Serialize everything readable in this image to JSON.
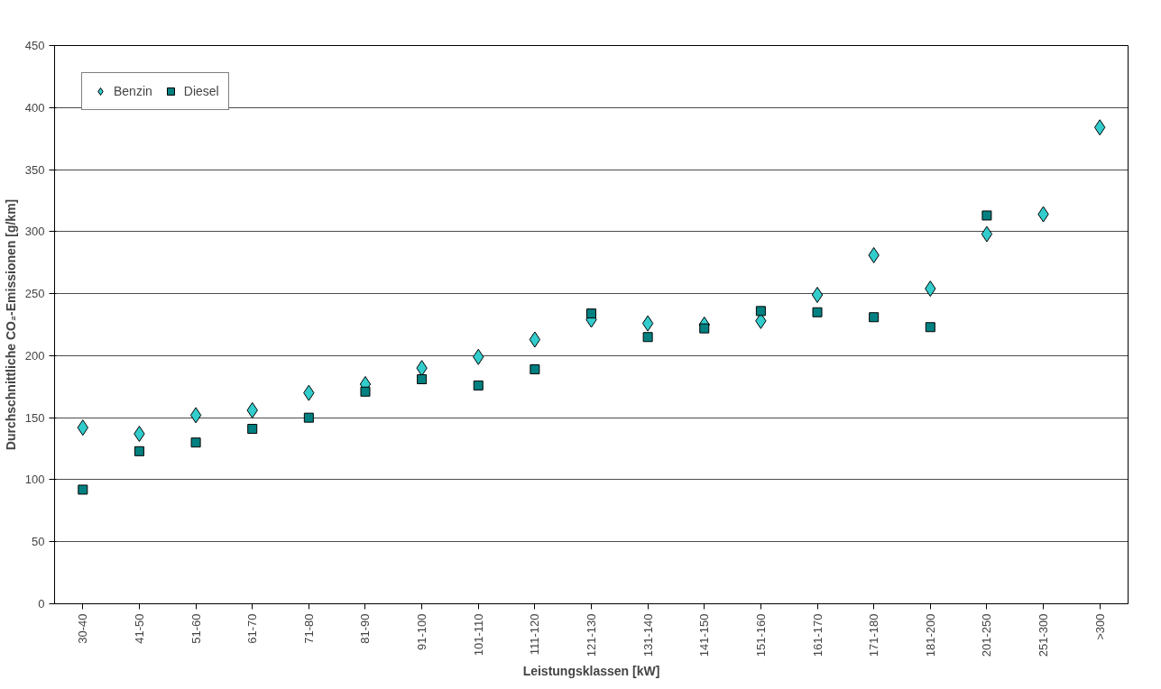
{
  "chart_data": {
    "type": "scatter",
    "xlabel": "Leistungsklassen [kW]",
    "ylabel": "Durchschnittliche CO₂-Emissionen [g/km]",
    "categories": [
      "30-40",
      "41-50",
      "51-60",
      "61-70",
      "71-80",
      "81-90",
      "91-100",
      "101-110",
      "111-120",
      "121-130",
      "131-140",
      "141-150",
      "151-160",
      "161-170",
      "171-180",
      "181-200",
      "201-250",
      "251-300",
      ">300"
    ],
    "series": [
      {
        "name": "Benzin",
        "color": "#33cccc",
        "marker": "diamond",
        "values": [
          142,
          137,
          152,
          156,
          170,
          177,
          190,
          199,
          213,
          229,
          226,
          225,
          228,
          249,
          281,
          254,
          298,
          314,
          384
        ]
      },
      {
        "name": "Diesel",
        "color": "#008080",
        "marker": "square",
        "values": [
          92,
          123,
          130,
          141,
          150,
          171,
          181,
          176,
          189,
          234,
          215,
          222,
          236,
          235,
          231,
          223,
          313,
          null,
          null
        ]
      }
    ],
    "ylim": [
      0,
      450
    ],
    "yticks": [
      0,
      50,
      100,
      150,
      200,
      250,
      300,
      350,
      400,
      450
    ],
    "grid": "y",
    "legend": "top left"
  }
}
